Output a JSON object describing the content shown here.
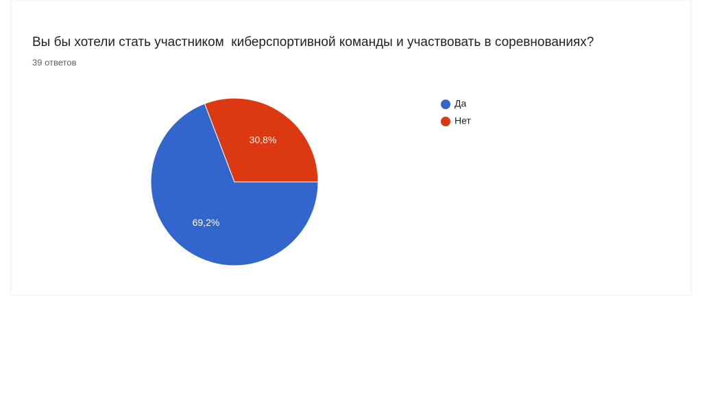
{
  "chart_data": {
    "type": "pie",
    "title": "Вы бы хотели стать участником  киберспортивной команды и участвовать в соревнованиях?",
    "subtitle": "39 ответов",
    "categories": [
      "Да",
      "Нет"
    ],
    "values": [
      69.2,
      30.8
    ],
    "value_labels": [
      "69,2%",
      "30,8%"
    ],
    "colors": [
      "#3366cc",
      "#dc3912"
    ],
    "legend": "right"
  }
}
